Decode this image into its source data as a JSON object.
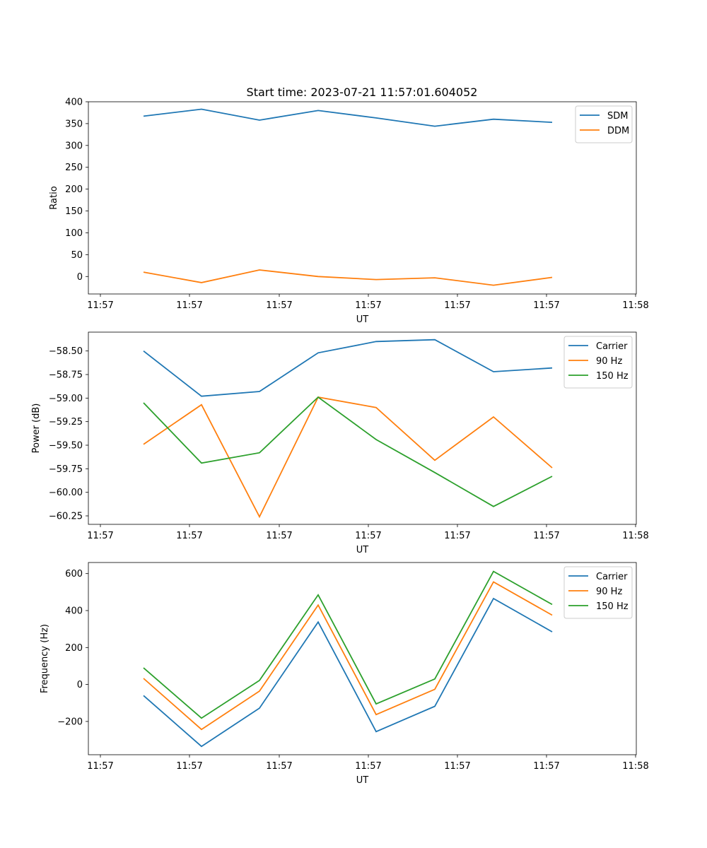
{
  "figure_title": "Start time: 2023-07-21 11:57:01.604052",
  "colors": {
    "blue": "#1f77b4",
    "orange": "#ff7f0e",
    "green": "#2ca02c"
  },
  "chart_data": [
    {
      "type": "line",
      "title": "Start time: 2023-07-21 11:57:01.604052",
      "xlabel": "UT",
      "ylabel": "Ratio",
      "x_ticks": [
        "11:57",
        "11:57",
        "11:57",
        "11:57",
        "11:57",
        "11:57",
        "11:58"
      ],
      "y_ticks": [
        400,
        350,
        300,
        250,
        200,
        150,
        100,
        50,
        0
      ],
      "ylim": [
        -40,
        400
      ],
      "series": [
        {
          "name": "SDM",
          "color": "#1f77b4",
          "values": [
            367,
            383,
            358,
            380,
            363,
            344,
            360,
            353
          ]
        },
        {
          "name": "DDM",
          "color": "#ff7f0e",
          "values": [
            10,
            -14,
            15,
            0,
            -7,
            -3,
            -20,
            -2
          ]
        }
      ],
      "legend": "top-right"
    },
    {
      "type": "line",
      "title": "",
      "xlabel": "UT",
      "ylabel": "Power (dB)",
      "x_ticks": [
        "11:57",
        "11:57",
        "11:57",
        "11:57",
        "11:57",
        "11:57",
        "11:58"
      ],
      "y_ticks": [
        "−58.50",
        "−58.75",
        "−59.00",
        "−59.25",
        "−59.50",
        "−59.75",
        "−60.00",
        "−60.25"
      ],
      "y_tick_values": [
        -58.5,
        -58.75,
        -59.0,
        -59.25,
        -59.5,
        -59.75,
        -60.0,
        -60.25
      ],
      "ylim": [
        -60.34,
        -58.3
      ],
      "series": [
        {
          "name": "Carrier",
          "color": "#1f77b4",
          "values": [
            -58.5,
            -58.98,
            -58.93,
            -58.52,
            -58.4,
            -58.38,
            -58.72,
            -58.68
          ]
        },
        {
          "name": "90 Hz",
          "color": "#ff7f0e",
          "values": [
            -59.49,
            -59.07,
            -60.26,
            -58.99,
            -59.1,
            -59.66,
            -59.2,
            -59.74
          ]
        },
        {
          "name": "150 Hz",
          "color": "#2ca02c",
          "values": [
            -59.05,
            -59.69,
            -59.58,
            -58.99,
            -59.44,
            -59.79,
            -60.15,
            -59.83
          ]
        }
      ],
      "legend": "top-right"
    },
    {
      "type": "line",
      "title": "",
      "xlabel": "UT",
      "ylabel": "Frequency (Hz)",
      "x_ticks": [
        "11:57",
        "11:57",
        "11:57",
        "11:57",
        "11:57",
        "11:57",
        "11:58"
      ],
      "y_ticks": [
        "600",
        "400",
        "200",
        "0",
        "−200"
      ],
      "y_tick_values": [
        600,
        400,
        200,
        0,
        -200
      ],
      "ylim": [
        -380,
        660
      ],
      "series": [
        {
          "name": "Carrier",
          "color": "#1f77b4",
          "values": [
            -60,
            -335,
            -128,
            338,
            -255,
            -118,
            465,
            285
          ]
        },
        {
          "name": "90 Hz",
          "color": "#ff7f0e",
          "values": [
            33,
            -243,
            -36,
            430,
            -163,
            -26,
            555,
            375
          ]
        },
        {
          "name": "150 Hz",
          "color": "#2ca02c",
          "values": [
            90,
            -182,
            22,
            485,
            -105,
            30,
            612,
            433
          ]
        }
      ],
      "legend": "top-right"
    }
  ]
}
